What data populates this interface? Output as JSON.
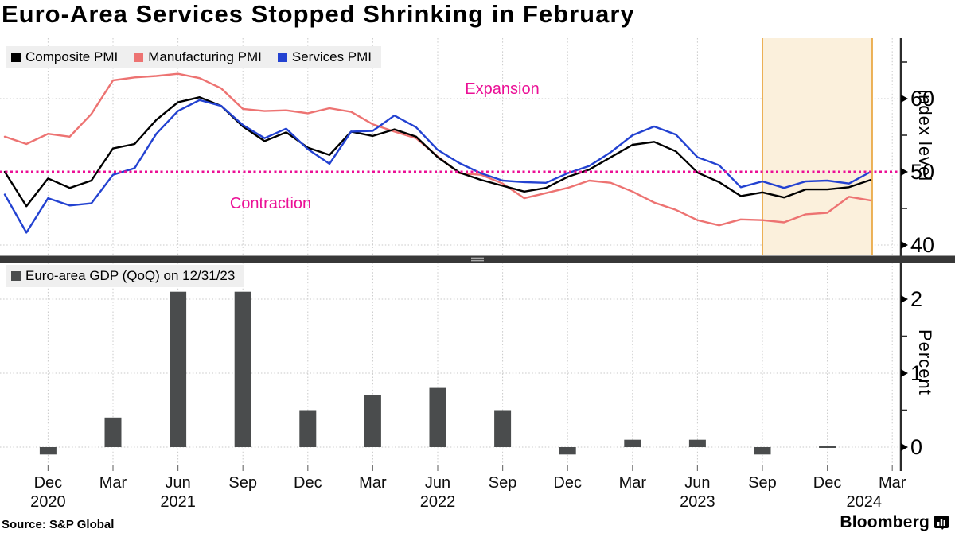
{
  "title": "Euro-Area Services Stopped Shrinking in February",
  "annotations": {
    "expansion": "Expansion",
    "contraction": "Contraction"
  },
  "footer": {
    "source": "Source: S&P Global",
    "brand": "Bloomberg"
  },
  "colors": {
    "composite": "#000000",
    "manufacturing": "#ed7372",
    "services": "#2342d1",
    "reference": "#eb1096",
    "band_fill": "#fbf0dc",
    "band_edge": "#e8a033",
    "bars": "#4a4c4d",
    "grid": "#c9c9c9",
    "axis": "#2b2b2b",
    "divider": "#383838",
    "legend_bg": "#efefef"
  },
  "legends": {
    "pmi": [
      {
        "label": "Composite PMI",
        "color": "#000000"
      },
      {
        "label": "Manufacturing PMI",
        "color": "#ed7372"
      },
      {
        "label": "Services PMI",
        "color": "#2342d1"
      }
    ],
    "gdp": [
      {
        "label": "Euro-area GDP (QoQ) on 12/31/23",
        "color": "#4a4c4d"
      }
    ]
  },
  "xaxis": {
    "tick_labels": [
      "Dec",
      "Mar",
      "Jun",
      "Sep",
      "Dec",
      "Mar",
      "Jun",
      "Sep",
      "Dec",
      "Mar",
      "Jun",
      "Sep",
      "Dec",
      "Mar"
    ],
    "year_labels": [
      {
        "text": "2020",
        "month_index": 2
      },
      {
        "text": "2021",
        "month_index": 8
      },
      {
        "text": "2022",
        "month_index": 20
      },
      {
        "text": "2023",
        "month_index": 32
      },
      {
        "text": "2024",
        "month_index": 39.7
      }
    ]
  },
  "chart_data": [
    {
      "type": "line",
      "panel": "top",
      "x_monthly_start": "2020-10",
      "x_monthly_end": "2024-02",
      "ylabel": "Index level",
      "ylim": [
        38.5,
        68.5
      ],
      "yticks": [
        40,
        50,
        60
      ],
      "yticks_minor": [
        45,
        55,
        65
      ],
      "reference_line": {
        "value": 50,
        "style": "dotted",
        "color": "#eb1096"
      },
      "highlight_span": {
        "from": "2023-09",
        "to": "2024-02"
      },
      "annotations": [
        "Expansion",
        "Contraction"
      ],
      "legend_position": "top-left",
      "grid": true,
      "series": [
        {
          "name": "Composite PMI",
          "color": "#000000",
          "values": [
            50.0,
            45.3,
            49.1,
            47.8,
            48.8,
            53.2,
            53.8,
            57.1,
            59.5,
            60.2,
            59.0,
            56.2,
            54.2,
            55.4,
            53.3,
            52.3,
            55.5,
            54.9,
            55.8,
            54.8,
            52.0,
            49.9,
            48.9,
            48.1,
            47.3,
            47.8,
            49.3,
            50.3,
            52.0,
            53.7,
            54.1,
            52.8,
            49.9,
            48.6,
            46.7,
            47.2,
            46.5,
            47.6,
            47.6,
            47.9,
            48.9
          ]
        },
        {
          "name": "Manufacturing PMI",
          "color": "#ed7372",
          "values": [
            54.8,
            53.8,
            55.2,
            54.8,
            57.9,
            62.5,
            62.9,
            63.1,
            63.4,
            62.8,
            61.4,
            58.6,
            58.3,
            58.4,
            58.0,
            58.7,
            58.2,
            56.5,
            55.5,
            54.6,
            52.1,
            49.8,
            49.6,
            48.4,
            46.4,
            47.1,
            47.8,
            48.8,
            48.5,
            47.3,
            45.8,
            44.8,
            43.4,
            42.7,
            43.5,
            43.4,
            43.1,
            44.2,
            44.4,
            46.6,
            46.1
          ]
        },
        {
          "name": "Services PMI",
          "color": "#2342d1",
          "values": [
            46.9,
            41.7,
            46.4,
            45.4,
            45.7,
            49.6,
            50.5,
            55.2,
            58.3,
            59.8,
            59.0,
            56.4,
            54.6,
            55.9,
            53.1,
            51.1,
            55.5,
            55.6,
            57.7,
            56.1,
            53.0,
            51.2,
            49.8,
            48.8,
            48.6,
            48.5,
            49.8,
            50.8,
            52.7,
            55.0,
            56.2,
            55.1,
            52.0,
            50.9,
            47.9,
            48.7,
            47.8,
            48.7,
            48.8,
            48.4,
            50.0
          ]
        }
      ]
    },
    {
      "type": "bar",
      "panel": "bottom",
      "ylabel": "Percent",
      "ylim": [
        -0.3,
        2.5
      ],
      "yticks": [
        0,
        1,
        2
      ],
      "yticks_minor": [
        0.5,
        1.5
      ],
      "grid": true,
      "categories": [
        "2020-12",
        "2021-03",
        "2021-06",
        "2021-09",
        "2021-12",
        "2022-03",
        "2022-06",
        "2022-09",
        "2022-12",
        "2023-03",
        "2023-06",
        "2023-09",
        "2023-12"
      ],
      "values": [
        -0.1,
        0.4,
        2.1,
        2.1,
        0.5,
        0.7,
        0.8,
        0.5,
        -0.1,
        0.1,
        0.1,
        -0.1,
        0.0
      ]
    }
  ]
}
